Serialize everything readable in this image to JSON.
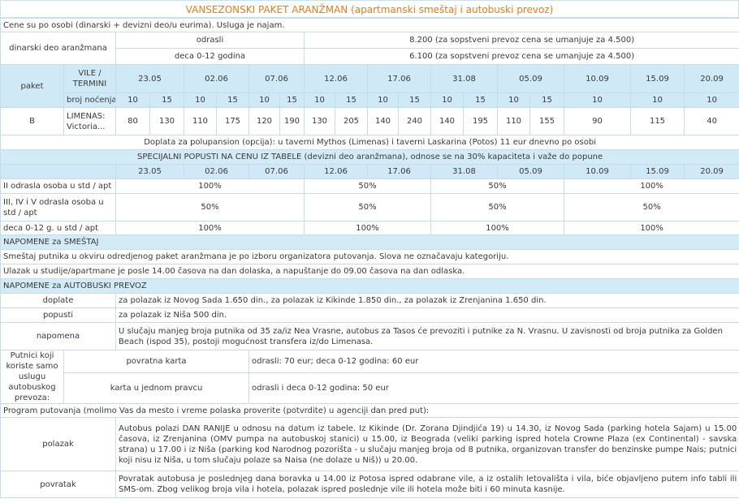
{
  "title": "VANSEZONSKI PAKET ARANŽMAN (apartmanski smeštaj i autobuski prevoz)",
  "price_intro": "Cene su po osobi (dinarski + devizni deo/u eurima). Usluga je najam.",
  "dinar_part": {
    "label": "dinarski deo aranžmana",
    "rows": [
      {
        "who": "odrasli",
        "price": "8.200 (za sopstveni prevoz cena se umanjuje za 4.500)"
      },
      {
        "who": "deca 0-12 godina",
        "price": "6.100 (za sopstveni prevoz cena se umanjuje za 4.500)"
      }
    ]
  },
  "table": {
    "paket_label": "paket",
    "vile_label": "VILE / TERMINI",
    "nights_label": "broj noćenja",
    "dates": [
      "23.05",
      "02.06",
      "07.06",
      "12.06",
      "17.06",
      "31.08",
      "05.09",
      "10.09",
      "15.09",
      "20.09"
    ],
    "nights": [
      "10",
      "15",
      "10",
      "15",
      "10",
      "15",
      "10",
      "15",
      "10",
      "15",
      "10",
      "15",
      "10",
      "15",
      "10",
      "10",
      "10"
    ],
    "row": {
      "paket": "B",
      "villa": "LIMENAS: Victoria...",
      "prices": [
        "80",
        "130",
        "110",
        "175",
        "120",
        "190",
        "130",
        "205",
        "140",
        "240",
        "140",
        "195",
        "110",
        "155",
        "90",
        "115",
        "40"
      ]
    }
  },
  "half_board": "Doplata za polupansion (opcija): u taverni Mythos (Limenas) i taverni Laskarina (Potos) 11 eur dnevno po osobi",
  "special": {
    "heading": "SPECIJALNI POPUSTI NA CENU IZ TABELE (devizni deo aranžmana), odnose se na 30% kapaciteta i važe do popune",
    "dates": [
      "23.05",
      "02.06",
      "07.06",
      "12.06",
      "17.06",
      "31.08",
      "05.09",
      "10.09",
      "15.09",
      "20.09"
    ],
    "rows": [
      {
        "label": "II odrasla osoba u std / apt",
        "values": [
          "100%",
          "50%",
          "50%",
          "100%"
        ]
      },
      {
        "label": "III, IV i V odrasla osoba u std / apt",
        "values": [
          "50%",
          "50%",
          "50%",
          "50%"
        ]
      },
      {
        "label": "deca 0-12 g. u std / apt",
        "values": [
          "100%",
          "100%",
          "100%",
          "100%"
        ]
      }
    ]
  },
  "notes_lodging": {
    "heading": "NAPOMENE za SMEŠTAJ",
    "lines": [
      "Smeštaj putnika u okviru odredjenog paket aranžmana je po izboru organizatora putovanja. Slova ne označavaju kategoriju.",
      "Ulazak u studije/apartmane je posle 14.00 časova na dan dolaska, a napuštanje do 09.00 časova na dan odlaska."
    ]
  },
  "notes_bus": {
    "heading": "NAPOMENE za AUTOBUSKI PREVOZ",
    "rows": [
      {
        "label": "doplate",
        "text": "za polazak iz Novog Sada 1.650 din., za polazak iz Kikinde 1.850 din., za polazak iz Zrenjanina 1.650 din."
      },
      {
        "label": "popusti",
        "text": "za polazak iz Niša 500 din."
      },
      {
        "label": "napomena",
        "text": "U slučaju manjeg broja putnika od 35 za/iz Nea Vrasne, autobus za Tasos će prevoziti i putnike za N. Vrasnu. U zavisnosti od broja putnika za Golden Beach (ispod 35), postoji mogućnost transfera iz/do Limenasa."
      }
    ],
    "transport_only": {
      "label": "Putnici koji koriste samo uslugu autobuskog prevoza:",
      "rows": [
        {
          "type": "povratna karta",
          "price": "odrasli: 70 eur; deca 0-12 godina: 60 eur"
        },
        {
          "type": "karta u jednom pravcu",
          "price": "odrasli  i  deca 0-12 godina: 50 eur"
        }
      ]
    }
  },
  "program": {
    "heading": "Program putovanja (molimo Vas da mesto i vreme polaska proverite (potvrdite) u agenciji dan pred put):",
    "rows": [
      {
        "label": "polazak",
        "text": "Autobus polazi DAN RANIJE u odnosu na datum iz tabele. Iz Kikinde (Dr. Zorana Djindjića 19) u 14.30, iz Novog Sada (parking hotela Sajam) u 15.00 časova, iz Zrenjanina (OMV pumpa na autobuskoj stanici) u 15.00, iz Beograda (veliki parking ispred hotela Crowne Plaza (ex Continental) - savska strana) u 17.00 i iz Niša (parking kod Narodnog pozorišta - u slučaju manjeg broja od 8 putnika, organizovan transfer do benzinske pumpe Nais; putnici koji nisu iz Niša, u tom slučaju polaze sa Naisa (ne dolaze u Niš)) u 20.00."
      },
      {
        "label": "povratak",
        "text": "Povratak autobusa je poslednjeg dana boravka u 14.00 iz Potosa ispred odabrane vile, a iz ostalih letovališta i vila, biće objavljeno putem info tabli ili SMS-om. Zbog velikog broja vila i hotela, polazak ispred poslednje vile ili hotela može biti i 60 minuta kasnije."
      }
    ]
  }
}
